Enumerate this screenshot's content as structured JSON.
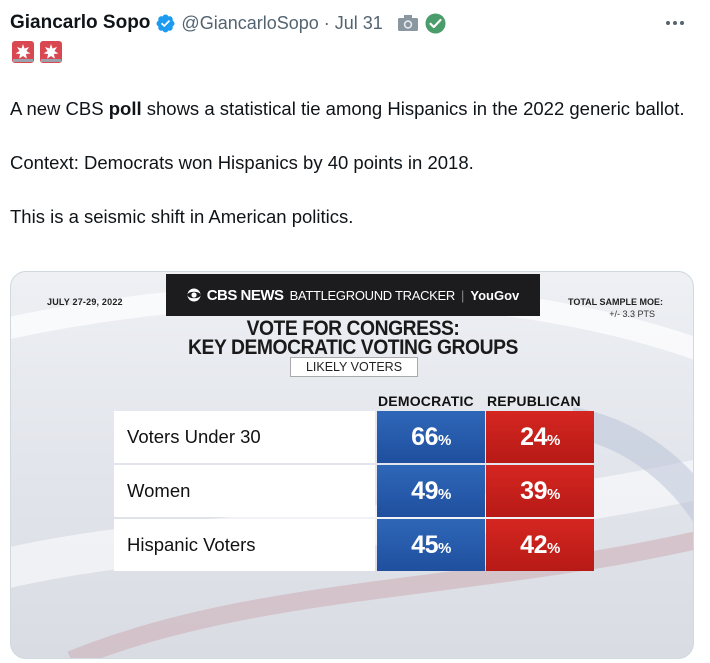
{
  "tweet": {
    "author_name": "Giancarlo Sopo",
    "handle": "@GiancarloSopo",
    "separator": "·",
    "date": "Jul 31",
    "paragraph_1_before": "A new CBS ",
    "paragraph_1_bold": "poll",
    "paragraph_1_after": " shows a statistical tie among Hispanics in the 2022 generic ballot.",
    "paragraph_2": "Context: Democrats won Hispanics by 40 points in 2018.",
    "paragraph_3": "This is a seismic shift in American politics."
  },
  "icons": {
    "verified": "verified-badge-icon",
    "camera": "camera-icon",
    "check": "check-circle-icon",
    "more": "more-options-icon",
    "emoji": "police-siren-icon"
  },
  "colors": {
    "verified_blue": "#1d9bf0",
    "check_green": "#4a9d6a",
    "democratic_blue": "#2a5fb0",
    "republican_red": "#c91f1b",
    "banner_dark": "#1c1c1f"
  },
  "chart_data": {
    "type": "table",
    "brand_cbs": "CBS NEWS",
    "brand_tracker": "BATTLEGROUND TRACKER",
    "brand_sep": "|",
    "brand_yougov": "YouGov",
    "date": "JULY 27-29, 2022",
    "moe_label": "TOTAL SAMPLE MOE:",
    "moe_value": "+/- 3.3 PTS",
    "title_line1": "VOTE FOR CONGRESS:",
    "title_line2": "KEY DEMOCRATIC VOTING GROUPS",
    "subtitle": "LIKELY VOTERS",
    "columns": [
      "DEMOCRATIC",
      "REPUBLICAN"
    ],
    "percent_sign": "%",
    "rows": [
      {
        "label": "Voters Under 30",
        "democratic": "66",
        "republican": "24"
      },
      {
        "label": "Women",
        "democratic": "49",
        "republican": "39"
      },
      {
        "label": "Hispanic Voters",
        "democratic": "45",
        "republican": "42"
      }
    ]
  }
}
